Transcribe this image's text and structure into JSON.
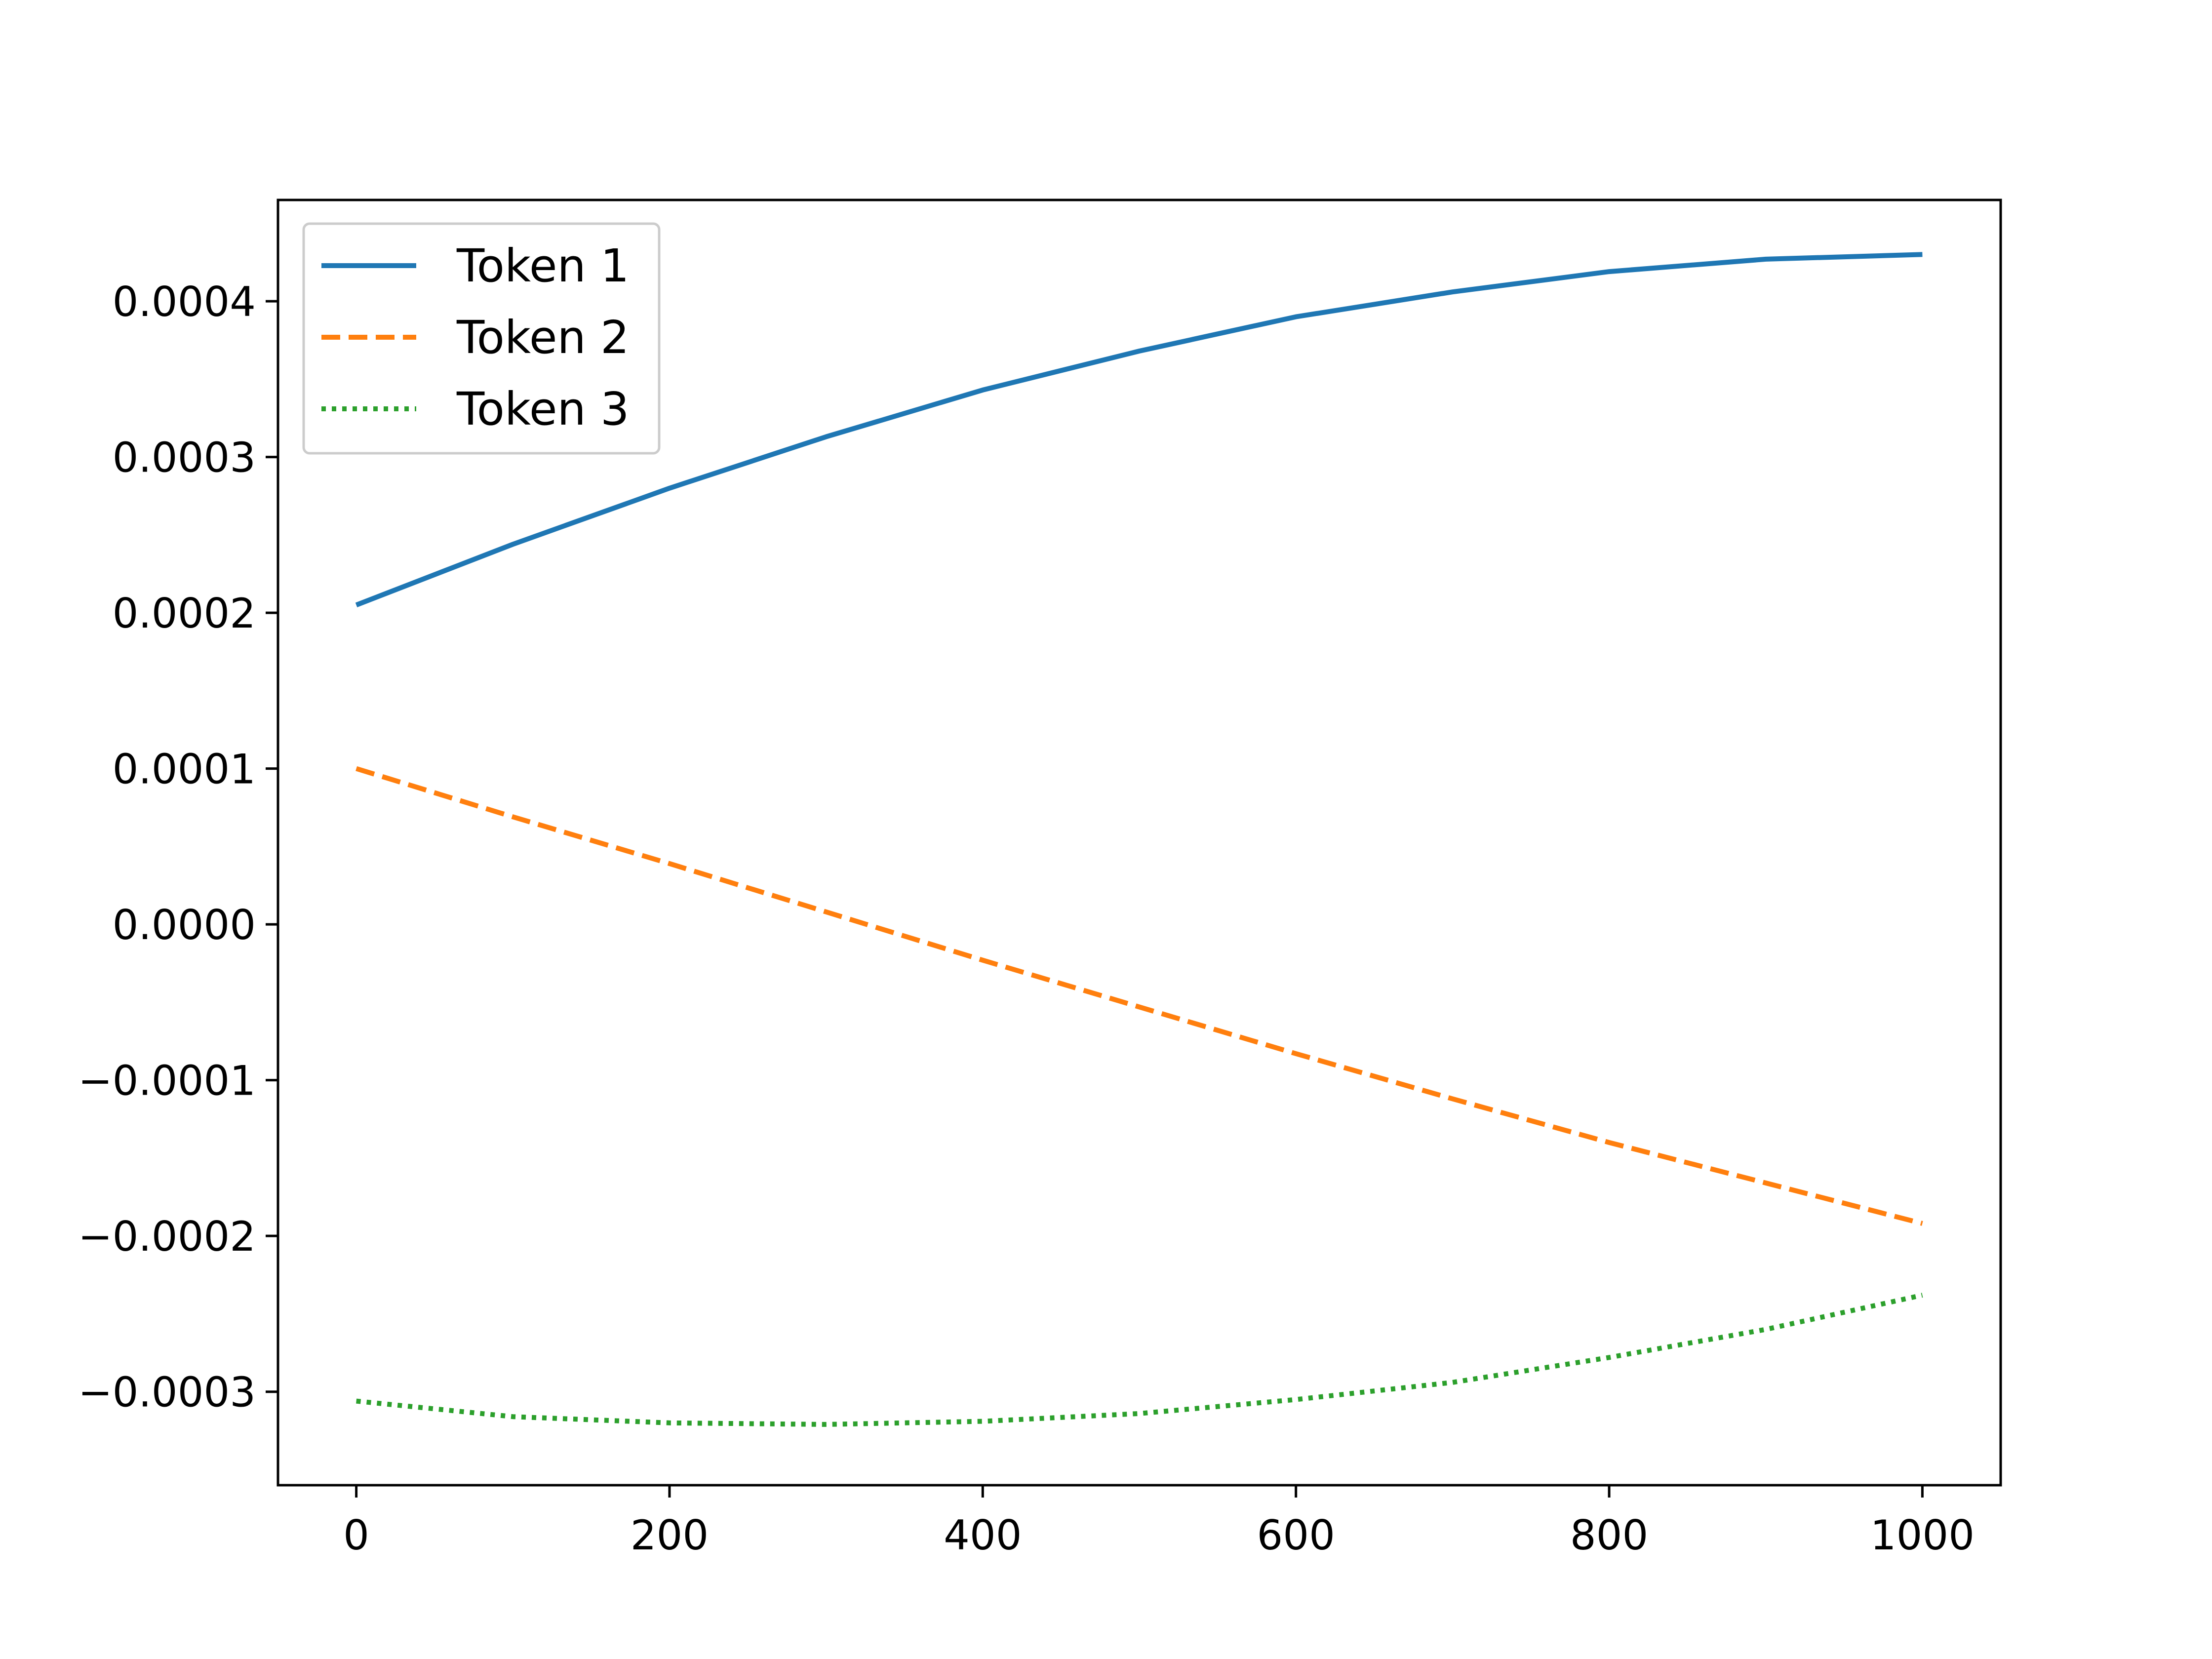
{
  "chart_data": {
    "type": "line",
    "title": "",
    "xlabel": "",
    "ylabel": "",
    "xlim": [
      -50,
      1050
    ],
    "ylim": [
      -0.00036,
      0.000465
    ],
    "x_ticks": [
      0,
      200,
      400,
      600,
      800,
      1000
    ],
    "x_tick_labels": [
      "0",
      "200",
      "400",
      "600",
      "800",
      "1000"
    ],
    "y_ticks": [
      -0.0003,
      -0.0002,
      -0.0001,
      0.0,
      0.0001,
      0.0002,
      0.0003,
      0.0004
    ],
    "y_tick_labels": [
      "−0.0003",
      "−0.0002",
      "−0.0001",
      "0.0000",
      "0.0001",
      "0.0002",
      "0.0003",
      "0.0004"
    ],
    "grid": false,
    "legend_position": "top-left",
    "x": [
      0,
      100,
      200,
      300,
      400,
      500,
      600,
      700,
      800,
      900,
      1000
    ],
    "series": [
      {
        "name": "Token 1",
        "color": "#1f77b4",
        "style": "solid",
        "values": [
          0.000205,
          0.000244,
          0.00028,
          0.000313,
          0.000343,
          0.000368,
          0.00039,
          0.000406,
          0.000419,
          0.000427,
          0.00043
        ]
      },
      {
        "name": "Token 2",
        "color": "#ff7f0e",
        "style": "dashed",
        "values": [
          0.0001,
          6.9e-05,
          3.9e-05,
          8e-06,
          -2.3e-05,
          -5.3e-05,
          -8.3e-05,
          -0.000112,
          -0.00014,
          -0.000166,
          -0.000192
        ]
      },
      {
        "name": "Token 3",
        "color": "#2ca02c",
        "style": "dotted",
        "values": [
          -0.000306,
          -0.000316,
          -0.00032,
          -0.000321,
          -0.000319,
          -0.000314,
          -0.000305,
          -0.000294,
          -0.000278,
          -0.00026,
          -0.000238
        ]
      }
    ]
  }
}
